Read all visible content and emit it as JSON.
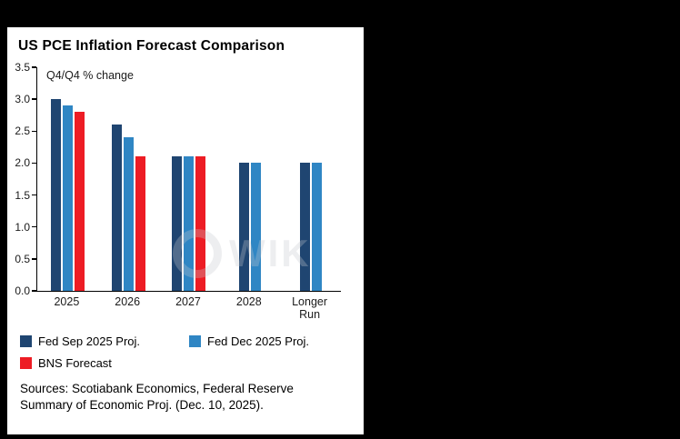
{
  "title": "US PCE Inflation Forecast Comparison",
  "subtitle": "Q4/Q4 % change",
  "watermark_text": "WIK",
  "sources": "Sources: Scotiabank Economics, Federal Reserve Summary of Economic Proj. (Dec. 10, 2025).",
  "colors": {
    "fed_sep": "#1F4571",
    "fed_dec": "#2F86C4",
    "bns": "#ED1C24",
    "axis": "#000000",
    "panel_bg": "#FFFFFF",
    "outer_bg": "#000000"
  },
  "chart_data": {
    "type": "bar",
    "title": "US PCE Inflation Forecast Comparison",
    "subtitle": "Q4/Q4 % change",
    "categories": [
      "2025",
      "2026",
      "2027",
      "2028",
      "Longer Run"
    ],
    "series": [
      {
        "name": "Fed Sep 2025 Proj.",
        "color": "#1F4571",
        "values": [
          3.0,
          2.6,
          2.1,
          2.0,
          2.0
        ]
      },
      {
        "name": "Fed Dec 2025 Proj.",
        "color": "#2F86C4",
        "values": [
          2.9,
          2.4,
          2.1,
          2.0,
          2.0
        ]
      },
      {
        "name": "BNS Forecast",
        "color": "#ED1C24",
        "values": [
          2.8,
          2.1,
          2.1,
          null,
          null
        ]
      }
    ],
    "xlabel": "",
    "ylabel": "Q4/Q4 % change",
    "ylim": [
      0,
      3.5
    ],
    "ytick_step": 0.5,
    "yticks": [
      "3.5",
      "3.0",
      "2.5",
      "2.0",
      "1.5",
      "1.0",
      "0.5",
      "0.0"
    ],
    "grid": false,
    "legend_position": "bottom"
  }
}
